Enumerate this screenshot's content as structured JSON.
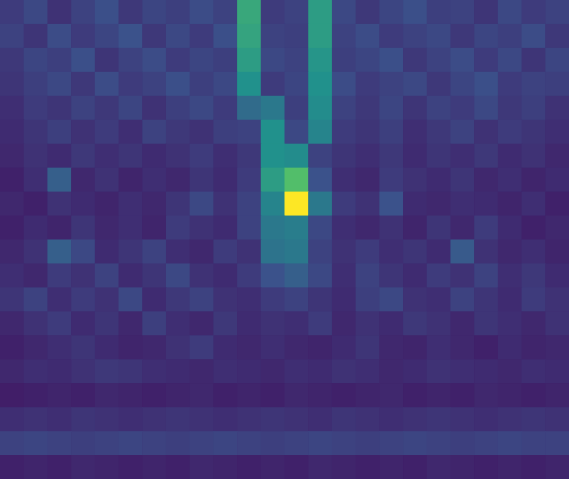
{
  "chart_data": {
    "type": "heatmap",
    "tick_labels": false,
    "zlim": [
      0,
      1
    ],
    "cells": [
      [
        0.18,
        0.22,
        0.15,
        0.2,
        0.24,
        0.17,
        0.21,
        0.19,
        0.23,
        0.2,
        0.6,
        0.18,
        0.2,
        0.55,
        0.22,
        0.17,
        0.21,
        0.24,
        0.19,
        0.2,
        0.16,
        0.22,
        0.18,
        0.2
      ],
      [
        0.2,
        0.16,
        0.23,
        0.18,
        0.21,
        0.25,
        0.17,
        0.22,
        0.18,
        0.24,
        0.58,
        0.2,
        0.19,
        0.55,
        0.2,
        0.23,
        0.18,
        0.2,
        0.22,
        0.17,
        0.21,
        0.19,
        0.23,
        0.17
      ],
      [
        0.17,
        0.21,
        0.19,
        0.24,
        0.16,
        0.2,
        0.23,
        0.18,
        0.21,
        0.19,
        0.55,
        0.22,
        0.2,
        0.52,
        0.19,
        0.21,
        0.24,
        0.17,
        0.2,
        0.23,
        0.18,
        0.22,
        0.16,
        0.21
      ],
      [
        0.16,
        0.19,
        0.22,
        0.17,
        0.23,
        0.18,
        0.2,
        0.24,
        0.19,
        0.22,
        0.5,
        0.18,
        0.21,
        0.5,
        0.23,
        0.18,
        0.2,
        0.22,
        0.17,
        0.21,
        0.24,
        0.18,
        0.2,
        0.19
      ],
      [
        0.14,
        0.18,
        0.16,
        0.2,
        0.17,
        0.21,
        0.15,
        0.19,
        0.22,
        0.18,
        0.35,
        0.4,
        0.19,
        0.48,
        0.2,
        0.17,
        0.21,
        0.16,
        0.2,
        0.18,
        0.22,
        0.17,
        0.19,
        0.15
      ],
      [
        0.13,
        0.16,
        0.19,
        0.15,
        0.18,
        0.14,
        0.2,
        0.17,
        0.15,
        0.19,
        0.2,
        0.5,
        0.22,
        0.45,
        0.18,
        0.16,
        0.19,
        0.14,
        0.17,
        0.2,
        0.15,
        0.18,
        0.16,
        0.14
      ],
      [
        0.12,
        0.15,
        0.13,
        0.17,
        0.14,
        0.16,
        0.13,
        0.15,
        0.18,
        0.14,
        0.17,
        0.5,
        0.48,
        0.2,
        0.16,
        0.14,
        0.17,
        0.13,
        0.16,
        0.14,
        0.17,
        0.13,
        0.15,
        0.12
      ],
      [
        0.1,
        0.14,
        0.3,
        0.12,
        0.15,
        0.11,
        0.14,
        0.12,
        0.16,
        0.13,
        0.18,
        0.55,
        0.7,
        0.25,
        0.14,
        0.12,
        0.18,
        0.15,
        0.13,
        0.16,
        0.12,
        0.14,
        0.11,
        0.13
      ],
      [
        0.12,
        0.1,
        0.15,
        0.13,
        0.11,
        0.14,
        0.12,
        0.16,
        0.22,
        0.15,
        0.2,
        0.45,
        1.0,
        0.4,
        0.18,
        0.15,
        0.25,
        0.13,
        0.12,
        0.14,
        0.13,
        0.11,
        0.14,
        0.1
      ],
      [
        0.1,
        0.13,
        0.11,
        0.16,
        0.12,
        0.14,
        0.11,
        0.18,
        0.15,
        0.13,
        0.2,
        0.4,
        0.42,
        0.22,
        0.14,
        0.12,
        0.15,
        0.11,
        0.16,
        0.12,
        0.18,
        0.13,
        0.1,
        0.12
      ],
      [
        0.12,
        0.15,
        0.3,
        0.22,
        0.13,
        0.16,
        0.2,
        0.14,
        0.12,
        0.18,
        0.15,
        0.38,
        0.4,
        0.2,
        0.15,
        0.18,
        0.14,
        0.16,
        0.13,
        0.28,
        0.15,
        0.12,
        0.14,
        0.11
      ],
      [
        0.14,
        0.12,
        0.18,
        0.15,
        0.2,
        0.13,
        0.16,
        0.22,
        0.15,
        0.13,
        0.18,
        0.25,
        0.3,
        0.22,
        0.14,
        0.2,
        0.16,
        0.13,
        0.18,
        0.15,
        0.2,
        0.14,
        0.17,
        0.13
      ],
      [
        0.16,
        0.2,
        0.14,
        0.18,
        0.15,
        0.22,
        0.13,
        0.17,
        0.2,
        0.15,
        0.14,
        0.18,
        0.2,
        0.16,
        0.13,
        0.19,
        0.22,
        0.15,
        0.14,
        0.2,
        0.16,
        0.13,
        0.18,
        0.15
      ],
      [
        0.12,
        0.15,
        0.18,
        0.13,
        0.16,
        0.12,
        0.19,
        0.14,
        0.12,
        0.17,
        0.13,
        0.15,
        0.14,
        0.18,
        0.12,
        0.15,
        0.13,
        0.17,
        0.15,
        0.12,
        0.16,
        0.14,
        0.12,
        0.15
      ],
      [
        0.1,
        0.12,
        0.14,
        0.16,
        0.13,
        0.11,
        0.12,
        0.15,
        0.18,
        0.13,
        0.12,
        0.14,
        0.12,
        0.11,
        0.13,
        0.16,
        0.12,
        0.11,
        0.14,
        0.12,
        0.1,
        0.13,
        0.11,
        0.12
      ],
      [
        0.12,
        0.14,
        0.13,
        0.15,
        0.17,
        0.16,
        0.14,
        0.13,
        0.12,
        0.14,
        0.13,
        0.12,
        0.14,
        0.13,
        0.15,
        0.14,
        0.12,
        0.13,
        0.15,
        0.14,
        0.13,
        0.12,
        0.14,
        0.13
      ],
      [
        0.09,
        0.1,
        0.11,
        0.1,
        0.12,
        0.11,
        0.1,
        0.11,
        0.12,
        0.1,
        0.11,
        0.1,
        0.12,
        0.11,
        0.1,
        0.11,
        0.12,
        0.1,
        0.11,
        0.1,
        0.12,
        0.11,
        0.1,
        0.11
      ],
      [
        0.14,
        0.15,
        0.14,
        0.16,
        0.15,
        0.14,
        0.15,
        0.16,
        0.15,
        0.14,
        0.15,
        0.16,
        0.15,
        0.14,
        0.16,
        0.15,
        0.14,
        0.15,
        0.16,
        0.15,
        0.14,
        0.15,
        0.16,
        0.15
      ],
      [
        0.2,
        0.21,
        0.2,
        0.19,
        0.2,
        0.21,
        0.2,
        0.19,
        0.2,
        0.21,
        0.2,
        0.19,
        0.2,
        0.21,
        0.2,
        0.19,
        0.2,
        0.21,
        0.2,
        0.19,
        0.2,
        0.21,
        0.2,
        0.2
      ],
      [
        0.1,
        0.11,
        0.1,
        0.12,
        0.11,
        0.1,
        0.11,
        0.1,
        0.12,
        0.11,
        0.1,
        0.11,
        0.1,
        0.12,
        0.11,
        0.1,
        0.11,
        0.1,
        0.12,
        0.11,
        0.1,
        0.11,
        0.1,
        0.11
      ]
    ]
  }
}
